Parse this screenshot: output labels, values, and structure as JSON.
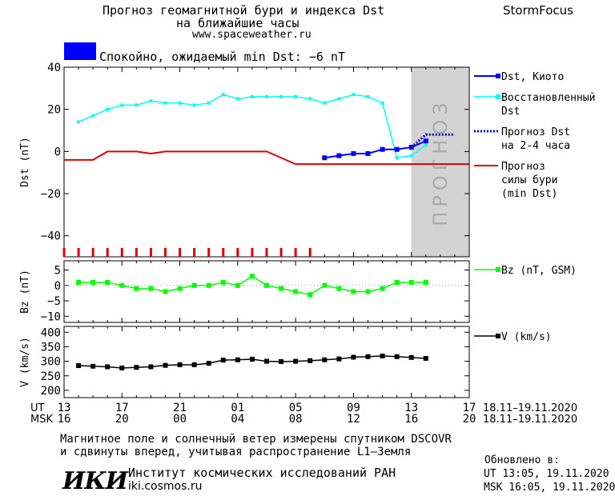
{
  "header": {
    "title_line1": "Прогноз геомагнитной бури и индекса Dst",
    "title_line2": "на ближайшие часы",
    "site": "www.spaceweather.ru",
    "brand": "StormFocus"
  },
  "status": {
    "text": "Спокойно, ожидаемый min Dst: −6 nT",
    "color": "#0000ff"
  },
  "forecast_label": "ПРОГНОЗ",
  "colors": {
    "dst_kyoto": "#0000ff",
    "dst_reconstructed": "#00ffff",
    "dst_forecast": "#0000cc",
    "storm_forecast": "#dd0000",
    "bz": "#00ff00",
    "v": "#000000",
    "forecast_zone": "#d3d3d3"
  },
  "time_axis": {
    "ut_label": "UT",
    "msk_label": "MSK",
    "ut_ticks": [
      "13",
      "17",
      "21",
      "01",
      "05",
      "09",
      "13",
      "17"
    ],
    "msk_ticks": [
      "16",
      "20",
      "00",
      "04",
      "08",
      "12",
      "16",
      "20"
    ],
    "ut_range": "18.11–19.11.2020",
    "msk_range": "18.11–19.11.2020"
  },
  "chart_data": [
    {
      "type": "line",
      "name": "dst",
      "ylabel": "Dst (nT)",
      "ylim": [
        -50,
        40
      ],
      "yticks": [
        "40",
        "20",
        "0",
        "−20",
        "−40"
      ],
      "ytick_values": [
        40,
        20,
        0,
        -20,
        -40
      ],
      "xlim": [
        0,
        28
      ],
      "x_unit": "hours since 13 UT 18.11.2020",
      "forecast_region": [
        24,
        28
      ],
      "legend": [
        {
          "key": "dst_kyoto",
          "label": [
            "Dst, Киото"
          ]
        },
        {
          "key": "dst_reconstructed",
          "label": [
            "Восстановленный",
            "Dst"
          ]
        },
        {
          "key": "dst_forecast",
          "label": [
            "Прогноз Dst",
            "на 2-4 часа"
          ]
        },
        {
          "key": "storm_forecast",
          "label": [
            "Прогноз",
            "силы бури",
            "(min Dst)"
          ]
        }
      ],
      "series": [
        {
          "name": "Dst, Киото",
          "x": [
            18,
            19,
            20,
            21,
            22,
            23,
            24,
            25
          ],
          "y": [
            -3,
            -2,
            -1,
            -1,
            1,
            1,
            2,
            5
          ]
        },
        {
          "name": "Восстановленный Dst",
          "x": [
            1,
            2,
            3,
            4,
            5,
            6,
            7,
            8,
            9,
            10,
            11,
            12,
            13,
            14,
            15,
            16,
            17,
            18,
            19,
            20,
            21,
            22,
            23,
            24,
            25
          ],
          "y": [
            14,
            17,
            20,
            22,
            22,
            24,
            23,
            23,
            22,
            23,
            27,
            25,
            26,
            26,
            26,
            26,
            25,
            23,
            25,
            27,
            26,
            23,
            -3,
            -2,
            3
          ]
        },
        {
          "name": "Прогноз Dst на 2-4 часа",
          "x": [
            24,
            25,
            26,
            27
          ],
          "y": [
            2,
            8,
            8,
            8
          ]
        },
        {
          "name": "Прогноз силы бури (min Dst)",
          "x": [
            0,
            2,
            3,
            5,
            6,
            7,
            8,
            9,
            10,
            11,
            12,
            13,
            14,
            15,
            16,
            17,
            28
          ],
          "y": [
            -4,
            -4,
            0,
            0,
            -1,
            0,
            0,
            0,
            0,
            0,
            0,
            0,
            0,
            -3,
            -6,
            -6,
            -6
          ]
        }
      ],
      "red_tick_x": [
        0,
        1,
        2,
        3,
        4,
        5,
        6,
        7,
        8,
        9,
        10,
        11,
        12,
        13,
        14,
        15,
        16,
        17
      ]
    },
    {
      "type": "line",
      "name": "bz",
      "ylabel": "Bz (nT)",
      "ylim": [
        -12,
        8
      ],
      "yticks": [
        "5",
        "0",
        "−5",
        "−10"
      ],
      "ytick_values": [
        5,
        0,
        -5,
        -10
      ],
      "xlim": [
        0,
        28
      ],
      "legend": [
        {
          "key": "bz",
          "label": [
            "Bz (nT, GSM)"
          ]
        }
      ],
      "series": [
        {
          "name": "Bz (nT, GSM)",
          "x": [
            1,
            2,
            3,
            4,
            5,
            6,
            7,
            8,
            9,
            10,
            11,
            12,
            13,
            14,
            15,
            16,
            17,
            18,
            19,
            20,
            21,
            22,
            23,
            24,
            25
          ],
          "y": [
            1,
            1,
            1,
            0,
            -1,
            -1,
            -2,
            -1,
            0,
            0,
            1,
            0,
            3,
            0,
            -1,
            -2,
            -3,
            0,
            -1,
            -2,
            -2,
            -1,
            1,
            1,
            1
          ]
        }
      ]
    },
    {
      "type": "line",
      "name": "v",
      "ylabel": "V (km/s)",
      "ylim": [
        175,
        420
      ],
      "yticks": [
        "400",
        "350",
        "300",
        "250",
        "200"
      ],
      "ytick_values": [
        400,
        350,
        300,
        250,
        200
      ],
      "xlim": [
        0,
        28
      ],
      "legend": [
        {
          "key": "v",
          "label": [
            "V (km/s)"
          ]
        }
      ],
      "series": [
        {
          "name": "V (km/s)",
          "x": [
            1,
            2,
            3,
            4,
            5,
            6,
            7,
            8,
            9,
            10,
            11,
            12,
            13,
            14,
            15,
            16,
            17,
            18,
            19,
            20,
            21,
            22,
            23,
            24,
            25
          ],
          "y": [
            285,
            283,
            281,
            277,
            279,
            281,
            286,
            288,
            288,
            293,
            304,
            305,
            307,
            300,
            299,
            300,
            302,
            305,
            308,
            314,
            316,
            318,
            316,
            313,
            310
          ]
        }
      ]
    }
  ],
  "footer": {
    "line1": "Магнитное поле и солнечный ветер измерены спутником DSCOVR",
    "line2": "и сдвинуты вперед, учитывая распространение L1–Земля",
    "logo": "ИКИ",
    "institute": "Институт космических исследований РАН",
    "institute_site": "iki.cosmos.ru",
    "updated_label": "Обновлено в:",
    "updated_ut": "UT   13:05, 19.11.2020",
    "updated_msk": "MSK 16:05, 19.11.2020"
  }
}
